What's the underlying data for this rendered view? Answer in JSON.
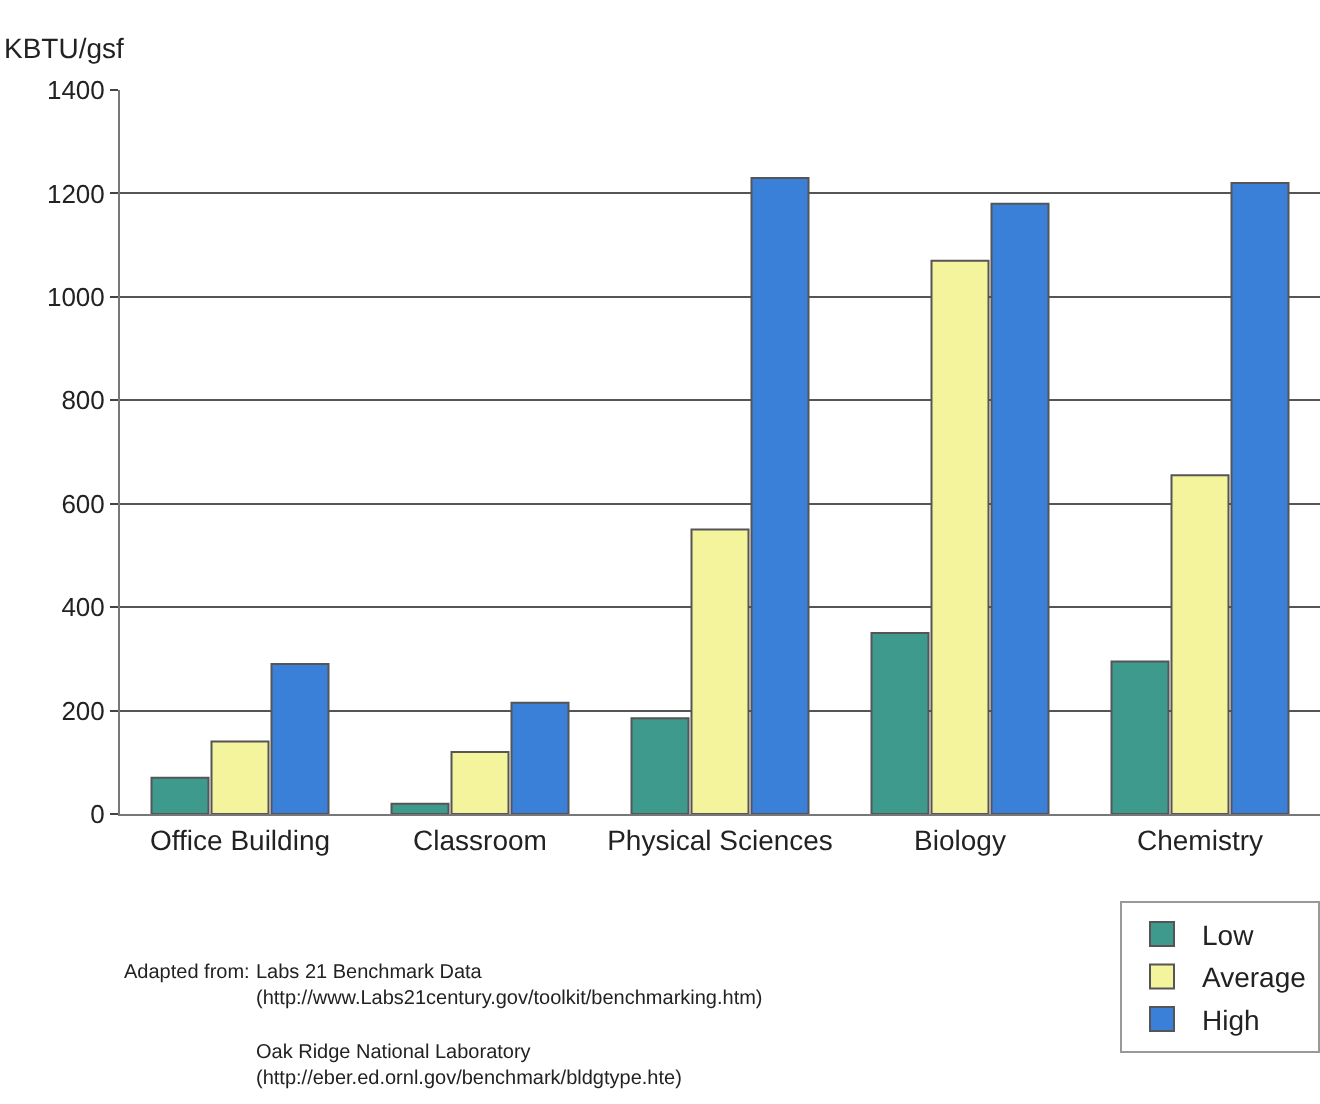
{
  "chart_data": {
    "type": "bar",
    "ylabel": "KBTU/gsf",
    "categories": [
      "Office Building",
      "Classroom",
      "Physical Sciences",
      "Biology",
      "Chemistry"
    ],
    "series": [
      {
        "name": "Low",
        "color": "#3e9a8c",
        "values": [
          70,
          20,
          185,
          350,
          295
        ]
      },
      {
        "name": "Average",
        "color": "#f4f49c",
        "values": [
          140,
          120,
          550,
          1070,
          655
        ]
      },
      {
        "name": "High",
        "color": "#3b80d8",
        "values": [
          290,
          215,
          1230,
          1180,
          1220
        ]
      }
    ],
    "ylim": [
      0,
      1400
    ],
    "yticks": [
      0,
      200,
      400,
      600,
      800,
      1000,
      1200,
      1400
    ],
    "grid": "y",
    "legend": "bottom right",
    "annotations": [
      "Adapted from:",
      "Labs 21 Benchmark Data\n(http://www.Labs21century.gov/toolkit/benchmarking.htm)",
      "Oak Ridge National Laboratory\n(http://eber.ed.ornl.gov/benchmark/bldgtype.hte)"
    ]
  }
}
